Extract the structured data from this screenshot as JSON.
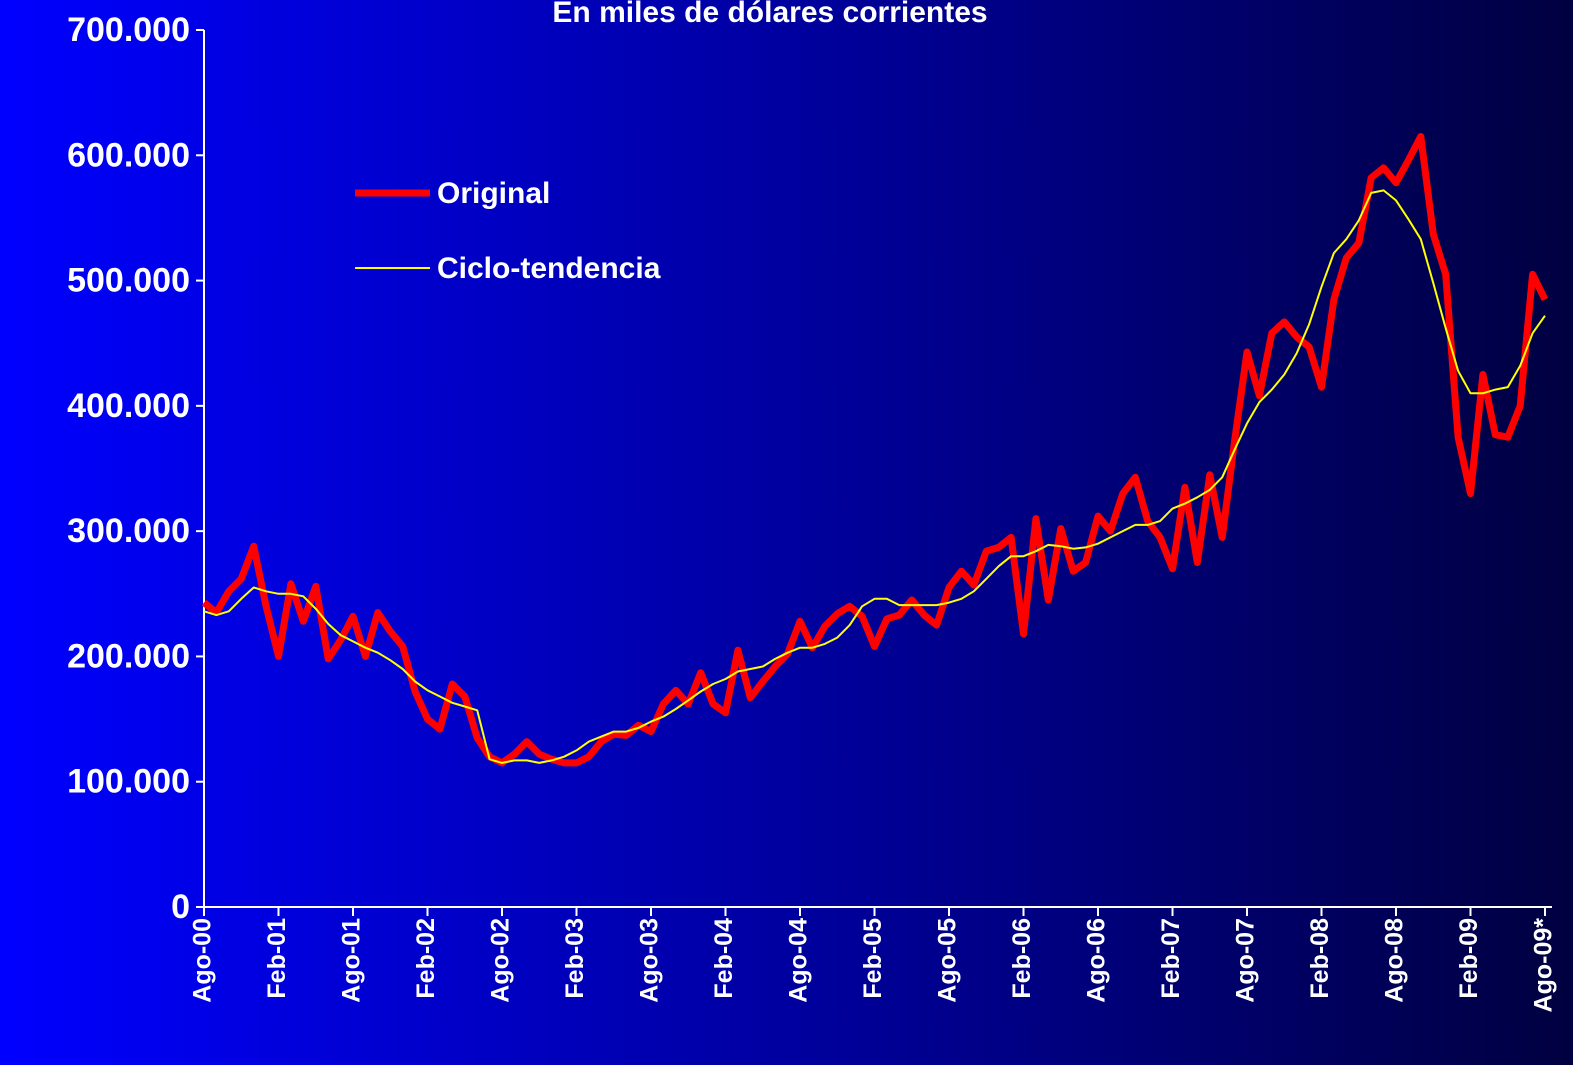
{
  "chart_data": {
    "type": "line",
    "title": "En miles de dólares corrientes",
    "categories": [
      "Ago-00",
      null,
      null,
      null,
      null,
      null,
      "Feb-01",
      null,
      null,
      null,
      null,
      null,
      "Ago-01",
      null,
      null,
      null,
      null,
      null,
      "Feb-02",
      null,
      null,
      null,
      null,
      null,
      "Ago-02",
      null,
      null,
      null,
      null,
      null,
      "Feb-03",
      null,
      null,
      null,
      null,
      null,
      "Ago-03",
      null,
      null,
      null,
      null,
      null,
      "Feb-04",
      null,
      null,
      null,
      null,
      null,
      "Ago-04",
      null,
      null,
      null,
      null,
      null,
      "Feb-05",
      null,
      null,
      null,
      null,
      null,
      "Ago-05",
      null,
      null,
      null,
      null,
      null,
      "Feb-06",
      null,
      null,
      null,
      null,
      null,
      "Ago-06",
      null,
      null,
      null,
      null,
      null,
      "Feb-07",
      null,
      null,
      null,
      null,
      null,
      "Ago-07",
      null,
      null,
      null,
      null,
      null,
      "Feb-08",
      null,
      null,
      null,
      null,
      null,
      "Ago-08",
      null,
      null,
      null,
      null,
      null,
      "Feb-09",
      null,
      null,
      null,
      null,
      null,
      "Ago-09*"
    ],
    "series": [
      {
        "name": "Original",
        "color": "#ff0000",
        "width": 7,
        "values": [
          243000,
          235000,
          252000,
          262000,
          288000,
          240000,
          200000,
          258000,
          228000,
          256000,
          198000,
          213000,
          232000,
          200000,
          235000,
          220000,
          208000,
          172000,
          150000,
          142000,
          178000,
          168000,
          135000,
          120000,
          115000,
          122000,
          132000,
          122000,
          118000,
          115000,
          115000,
          120000,
          132000,
          138000,
          137000,
          145000,
          140000,
          162000,
          173000,
          162000,
          187000,
          162000,
          155000,
          205000,
          167000,
          180000,
          192000,
          202000,
          228000,
          207000,
          224000,
          234000,
          240000,
          232000,
          208000,
          230000,
          233000,
          245000,
          233000,
          225000,
          255000,
          268000,
          257000,
          284000,
          287000,
          295000,
          218000,
          310000,
          245000,
          302000,
          268000,
          275000,
          312000,
          300000,
          330000,
          343000,
          308000,
          295000,
          270000,
          335000,
          275000,
          345000,
          295000,
          372000,
          443000,
          408000,
          458000,
          467000,
          455000,
          447000,
          415000,
          485000,
          518000,
          530000,
          582000,
          590000,
          578000,
          596000,
          615000,
          537000,
          505000,
          375000,
          330000,
          425000,
          377000,
          375000,
          400000,
          505000,
          485000
        ]
      },
      {
        "name": "Ciclo-tendencia",
        "color": "#ffff00",
        "width": 2,
        "values": [
          236000,
          233000,
          236000,
          246000,
          255000,
          252000,
          250000,
          250000,
          248000,
          238000,
          226000,
          217000,
          212000,
          207000,
          203000,
          197000,
          190000,
          180000,
          173000,
          168000,
          163000,
          160000,
          157000,
          118000,
          115000,
          117000,
          117000,
          115000,
          117000,
          120000,
          125000,
          132000,
          136000,
          140000,
          140000,
          143000,
          148000,
          152000,
          158000,
          165000,
          172000,
          178000,
          182000,
          188000,
          190000,
          192000,
          198000,
          203000,
          207000,
          207000,
          210000,
          215000,
          225000,
          240000,
          246000,
          246000,
          241000,
          241000,
          241000,
          241000,
          243000,
          246000,
          252000,
          262000,
          272000,
          280000,
          280000,
          284000,
          289000,
          288000,
          286000,
          287000,
          290000,
          295000,
          300000,
          305000,
          305000,
          308000,
          318000,
          322000,
          327000,
          333000,
          343000,
          365000,
          386000,
          403000,
          413000,
          425000,
          442000,
          465000,
          495000,
          522000,
          533000,
          548000,
          570000,
          572000,
          564000,
          549000,
          533000,
          498000,
          462000,
          428000,
          410000,
          410000,
          413000,
          415000,
          432000,
          458000,
          472000
        ]
      }
    ],
    "ylim": [
      0,
      700000
    ],
    "yticks": [
      0,
      {
        "value": 100000,
        "label": "100.000"
      },
      {
        "value": 200000,
        "label": "200.000"
      },
      {
        "value": 300000,
        "label": "300.000"
      },
      {
        "value": 400000,
        "label": "400.000"
      },
      {
        "value": 500000,
        "label": "500.000"
      },
      {
        "value": 600000,
        "label": "600.000"
      },
      {
        "value": 700000,
        "label": "700.000"
      }
    ],
    "legend": "top-left"
  }
}
